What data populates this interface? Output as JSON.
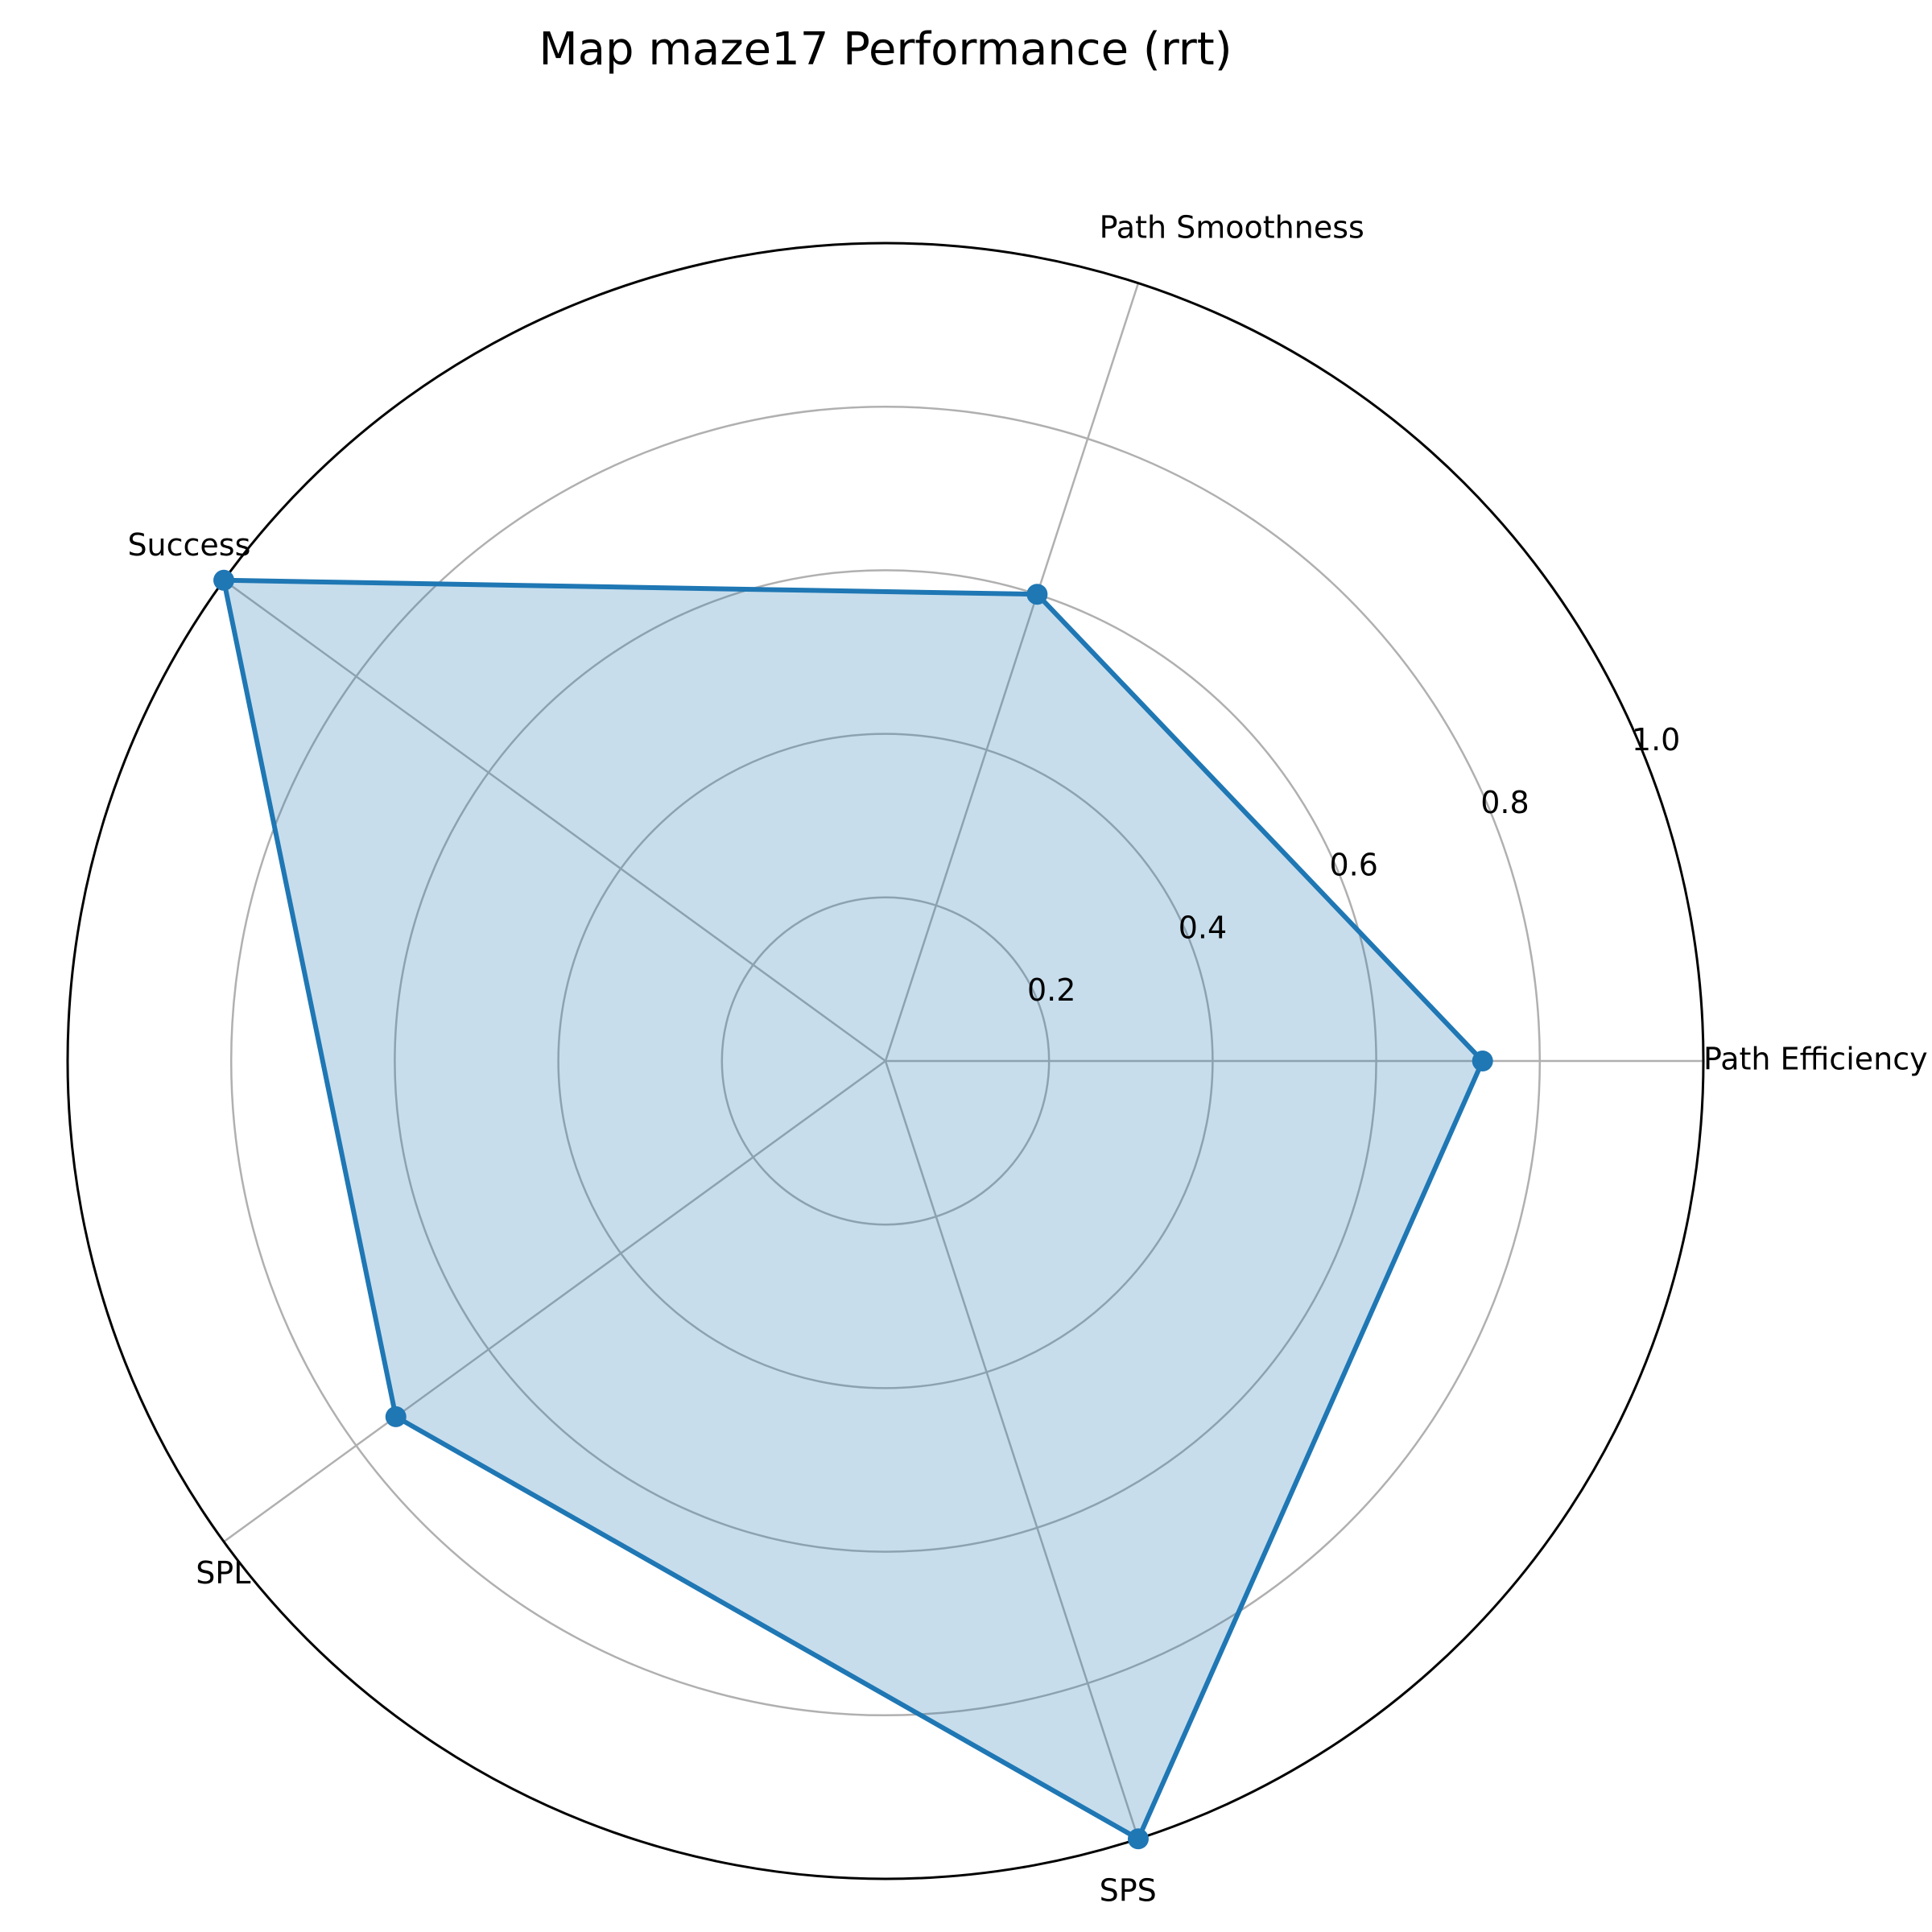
{
  "chart_data": {
    "type": "radar",
    "title": "Map maze17 Performance (rrt)",
    "categories": [
      "Path Efficiency",
      "Path Smoothness",
      "Success",
      "SPL",
      "SPS"
    ],
    "series": [
      {
        "name": "rrt",
        "values": [
          0.73,
          0.6,
          1.0,
          0.74,
          1.0
        ]
      }
    ],
    "rlim": [
      0,
      1.0
    ],
    "radial_ticks": [
      0.2,
      0.4,
      0.6,
      0.8,
      1.0
    ],
    "radial_tick_labels": [
      "0.2",
      "0.4",
      "0.6",
      "0.8",
      "1.0"
    ],
    "grid": true,
    "colors": {
      "series_line": "#1f77b4",
      "series_fill": "#1f77b4",
      "grid": "#b0b0b0",
      "frame": "#000000"
    }
  }
}
